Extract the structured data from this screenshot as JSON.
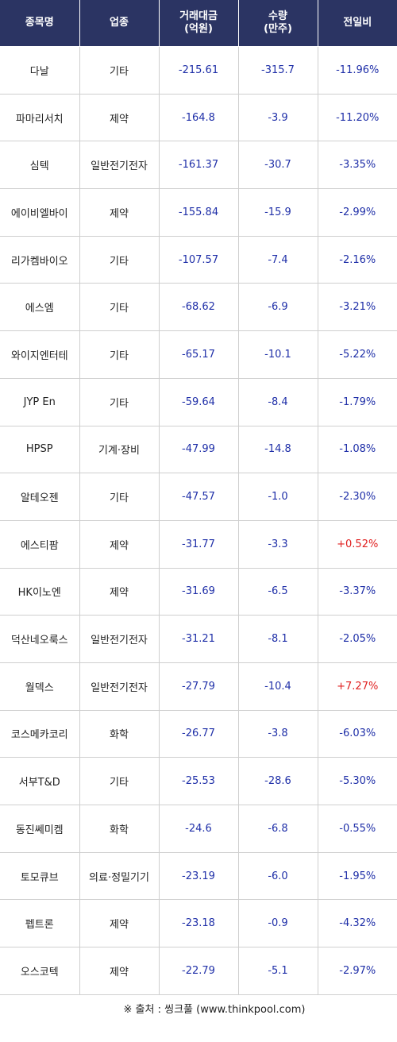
{
  "headers": {
    "name": "종목명",
    "sector": "업종",
    "amount_l1": "거래대금",
    "amount_l2": "(억원)",
    "volume_l1": "수량",
    "volume_l2": "(만주)",
    "change": "전일비"
  },
  "rows": [
    {
      "name": "다날",
      "sector": "기타",
      "amount": "-215.61",
      "volume": "-315.7",
      "change": "-11.96%",
      "dir": "down"
    },
    {
      "name": "파마리서치",
      "sector": "제약",
      "amount": "-164.8",
      "volume": "-3.9",
      "change": "-11.20%",
      "dir": "down"
    },
    {
      "name": "심텍",
      "sector": "일반전기전자",
      "amount": "-161.37",
      "volume": "-30.7",
      "change": "-3.35%",
      "dir": "down"
    },
    {
      "name": "에이비엘바이",
      "sector": "제약",
      "amount": "-155.84",
      "volume": "-15.9",
      "change": "-2.99%",
      "dir": "down"
    },
    {
      "name": "리가켐바이오",
      "sector": "기타",
      "amount": "-107.57",
      "volume": "-7.4",
      "change": "-2.16%",
      "dir": "down"
    },
    {
      "name": "에스엠",
      "sector": "기타",
      "amount": "-68.62",
      "volume": "-6.9",
      "change": "-3.21%",
      "dir": "down"
    },
    {
      "name": "와이지엔터테",
      "sector": "기타",
      "amount": "-65.17",
      "volume": "-10.1",
      "change": "-5.22%",
      "dir": "down"
    },
    {
      "name": "JYP En",
      "sector": "기타",
      "amount": "-59.64",
      "volume": "-8.4",
      "change": "-1.79%",
      "dir": "down"
    },
    {
      "name": "HPSP",
      "sector": "기계·장비",
      "amount": "-47.99",
      "volume": "-14.8",
      "change": "-1.08%",
      "dir": "down"
    },
    {
      "name": "알테오젠",
      "sector": "기타",
      "amount": "-47.57",
      "volume": "-1.0",
      "change": "-2.30%",
      "dir": "down"
    },
    {
      "name": "에스티팜",
      "sector": "제약",
      "amount": "-31.77",
      "volume": "-3.3",
      "change": "+0.52%",
      "dir": "up"
    },
    {
      "name": "HK이노엔",
      "sector": "제약",
      "amount": "-31.69",
      "volume": "-6.5",
      "change": "-3.37%",
      "dir": "down"
    },
    {
      "name": "덕산네오룩스",
      "sector": "일반전기전자",
      "amount": "-31.21",
      "volume": "-8.1",
      "change": "-2.05%",
      "dir": "down"
    },
    {
      "name": "월덱스",
      "sector": "일반전기전자",
      "amount": "-27.79",
      "volume": "-10.4",
      "change": "+7.27%",
      "dir": "up"
    },
    {
      "name": "코스메카코리",
      "sector": "화학",
      "amount": "-26.77",
      "volume": "-3.8",
      "change": "-6.03%",
      "dir": "down"
    },
    {
      "name": "서부T&D",
      "sector": "기타",
      "amount": "-25.53",
      "volume": "-28.6",
      "change": "-5.30%",
      "dir": "down"
    },
    {
      "name": "동진쎄미켐",
      "sector": "화학",
      "amount": "-24.6",
      "volume": "-6.8",
      "change": "-0.55%",
      "dir": "down"
    },
    {
      "name": "토모큐브",
      "sector": "의료·정밀기기",
      "amount": "-23.19",
      "volume": "-6.0",
      "change": "-1.95%",
      "dir": "down"
    },
    {
      "name": "펩트론",
      "sector": "제약",
      "amount": "-23.18",
      "volume": "-0.9",
      "change": "-4.32%",
      "dir": "down"
    },
    {
      "name": "오스코텍",
      "sector": "제약",
      "amount": "-22.79",
      "volume": "-5.1",
      "change": "-2.97%",
      "dir": "down"
    }
  ],
  "colors": {
    "header_bg": "#2b3463",
    "negative": "#1f2fa8",
    "positive": "#e01e1e"
  },
  "source": "※ 출처 : 씽크풀 (www.thinkpool.com)"
}
